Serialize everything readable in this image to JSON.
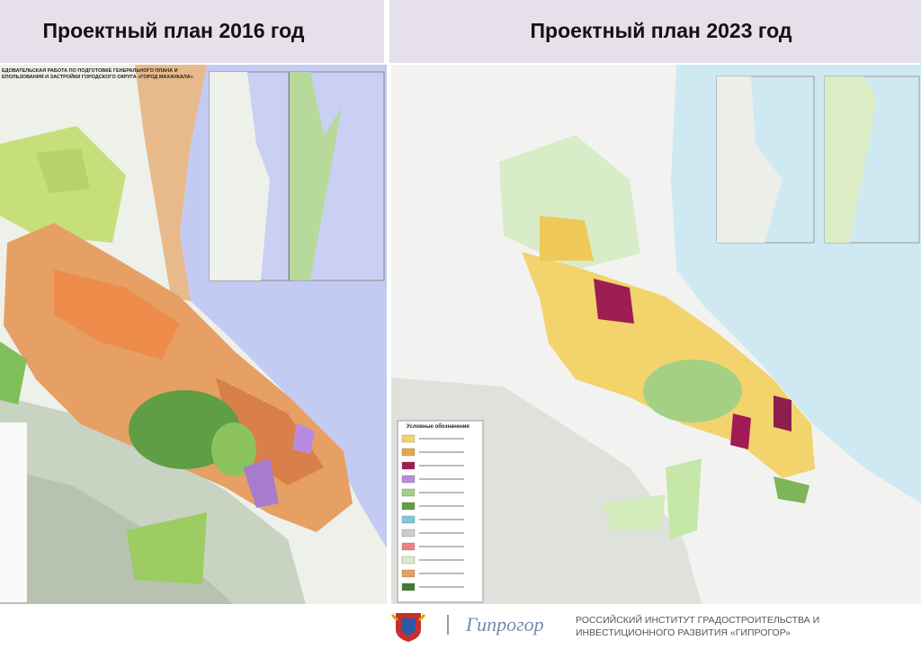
{
  "panels": [
    {
      "title": "Проектный план 2016 год",
      "map_heading_lines": [
        "ЕДОВАТЕЛЬСКАЯ РАБОТА ПО ПОДГОТОВКЕ ГЕНЕРАЛЬНОГО ПЛАНА И",
        "ЕПОЛЬЗОВАНИЯ И ЗАСТРОЙКИ ГОРОДСКОГО ОКРУГА «ГОРОД МАХАЧКАЛА»"
      ]
    },
    {
      "title": "Проектный план 2023 год",
      "legend_title": "Условные обозначения"
    }
  ],
  "footer": {
    "logo_text": "Гипрогор",
    "org_name_lines": [
      "РОССИЙСКИЙ ИНСТИТУТ ГРАДОСТРОИТЕЛЬСТВА И",
      "ИНВЕСТИЦИОННОГО РАЗВИТИЯ «ГИПРОГОР»"
    ]
  }
}
